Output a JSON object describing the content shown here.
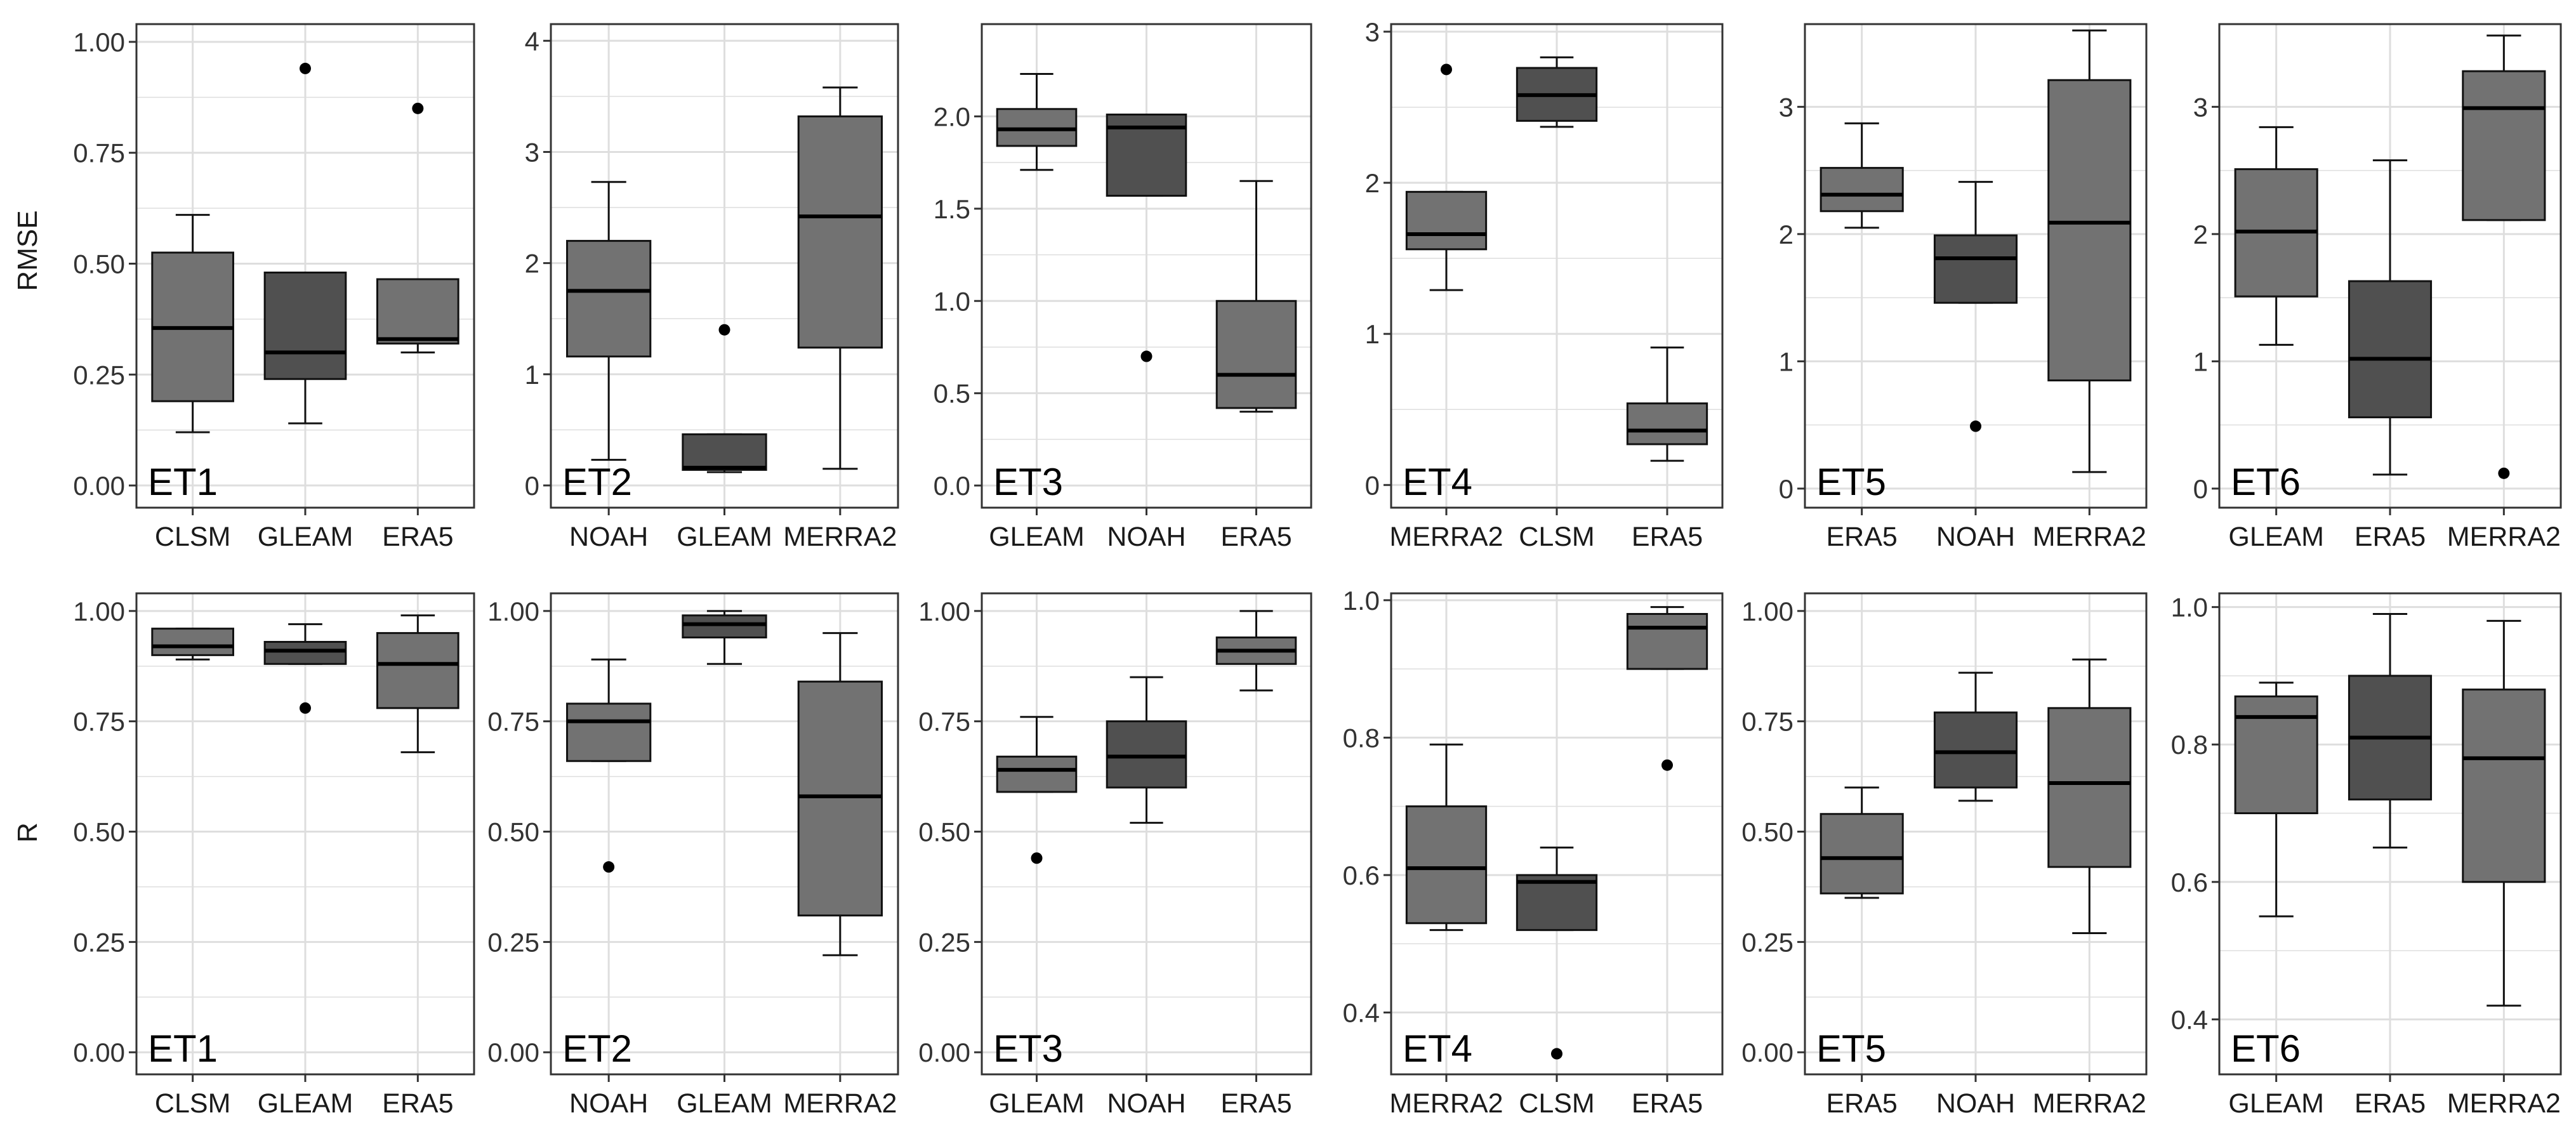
{
  "colors": {
    "box_light": "#727272",
    "box_dark": "#505050",
    "grid": "#dedede",
    "axis": "#333333",
    "text": "#1a1a1a"
  },
  "row_labels": [
    "RMSE",
    "R"
  ],
  "chart_data": [
    {
      "type": "box",
      "metric": "RMSE",
      "label": "ET1",
      "categories": [
        "CLSM",
        "GLEAM",
        "ERA5"
      ],
      "ylim": [
        -0.05,
        1.04
      ],
      "ticks": [
        0,
        0.25,
        0.5,
        0.75,
        1
      ],
      "tick_labels": [
        "0.00",
        "0.25",
        "0.50",
        "0.75",
        "1.00"
      ],
      "boxes": [
        {
          "min": 0.12,
          "q1": 0.19,
          "median": 0.355,
          "q3": 0.525,
          "max": 0.61,
          "outliers": []
        },
        {
          "min": 0.14,
          "q1": 0.24,
          "median": 0.3,
          "q3": 0.48,
          "max": 0.48,
          "outliers": [
            0.94
          ]
        },
        {
          "min": 0.3,
          "q1": 0.32,
          "median": 0.33,
          "q3": 0.465,
          "max": 0.465,
          "outliers": [
            0.85
          ]
        }
      ]
    },
    {
      "type": "box",
      "metric": "RMSE",
      "label": "ET2",
      "categories": [
        "NOAH",
        "GLEAM",
        "MERRA2"
      ],
      "ylim": [
        -0.2,
        4.15
      ],
      "ticks": [
        0,
        1,
        2,
        3,
        4
      ],
      "tick_labels": [
        "0",
        "1",
        "2",
        "3",
        "4"
      ],
      "boxes": [
        {
          "min": 0.23,
          "q1": 1.16,
          "median": 1.75,
          "q3": 2.2,
          "max": 2.73,
          "outliers": []
        },
        {
          "min": 0.12,
          "q1": 0.14,
          "median": 0.16,
          "q3": 0.46,
          "max": 0.46,
          "outliers": [
            1.4
          ]
        },
        {
          "min": 0.15,
          "q1": 1.24,
          "median": 2.42,
          "q3": 3.32,
          "max": 3.58,
          "outliers": []
        }
      ]
    },
    {
      "type": "box",
      "metric": "RMSE",
      "label": "ET3",
      "categories": [
        "GLEAM",
        "NOAH",
        "ERA5"
      ],
      "ylim": [
        -0.12,
        2.5
      ],
      "ticks": [
        0,
        0.5,
        1,
        1.5,
        2
      ],
      "tick_labels": [
        "0.0",
        "0.5",
        "1.0",
        "1.5",
        "2.0"
      ],
      "boxes": [
        {
          "min": 1.71,
          "q1": 1.84,
          "median": 1.93,
          "q3": 2.04,
          "max": 2.23,
          "outliers": []
        },
        {
          "min": 1.57,
          "q1": 1.57,
          "median": 1.94,
          "q3": 2.01,
          "max": 2.01,
          "outliers": [
            0.7
          ]
        },
        {
          "min": 0.4,
          "q1": 0.42,
          "median": 0.6,
          "q3": 1.0,
          "max": 1.65,
          "outliers": []
        }
      ]
    },
    {
      "type": "box",
      "metric": "RMSE",
      "label": "ET4",
      "categories": [
        "MERRA2",
        "CLSM",
        "ERA5"
      ],
      "ylim": [
        -0.15,
        3.05
      ],
      "ticks": [
        0,
        1,
        2,
        3
      ],
      "tick_labels": [
        "0",
        "1",
        "2",
        "3"
      ],
      "boxes": [
        {
          "min": 1.29,
          "q1": 1.56,
          "median": 1.66,
          "q3": 1.94,
          "max": 1.94,
          "outliers": [
            2.75
          ]
        },
        {
          "min": 2.37,
          "q1": 2.41,
          "median": 2.58,
          "q3": 2.76,
          "max": 2.83,
          "outliers": []
        },
        {
          "min": 0.16,
          "q1": 0.27,
          "median": 0.36,
          "q3": 0.54,
          "max": 0.91,
          "outliers": []
        }
      ]
    },
    {
      "type": "box",
      "metric": "RMSE",
      "label": "ET5",
      "categories": [
        "ERA5",
        "NOAH",
        "MERRA2"
      ],
      "ylim": [
        -0.15,
        3.65
      ],
      "ticks": [
        0,
        1,
        2,
        3
      ],
      "tick_labels": [
        "0",
        "1",
        "2",
        "3"
      ],
      "boxes": [
        {
          "min": 2.05,
          "q1": 2.18,
          "median": 2.31,
          "q3": 2.52,
          "max": 2.87,
          "outliers": []
        },
        {
          "min": 1.46,
          "q1": 1.46,
          "median": 1.81,
          "q3": 1.99,
          "max": 2.41,
          "outliers": [
            0.49
          ]
        },
        {
          "min": 0.13,
          "q1": 0.85,
          "median": 2.09,
          "q3": 3.21,
          "max": 3.6,
          "outliers": []
        }
      ]
    },
    {
      "type": "box",
      "metric": "RMSE",
      "label": "ET6",
      "categories": [
        "GLEAM",
        "ERA5",
        "MERRA2"
      ],
      "ylim": [
        -0.15,
        3.65
      ],
      "ticks": [
        0,
        1,
        2,
        3
      ],
      "tick_labels": [
        "0",
        "1",
        "2",
        "3"
      ],
      "boxes": [
        {
          "min": 1.13,
          "q1": 1.51,
          "median": 2.02,
          "q3": 2.51,
          "max": 2.84,
          "outliers": []
        },
        {
          "min": 0.11,
          "q1": 0.56,
          "median": 1.02,
          "q3": 1.63,
          "max": 2.58,
          "outliers": []
        },
        {
          "min": 2.11,
          "q1": 2.11,
          "median": 2.99,
          "q3": 3.28,
          "max": 3.56,
          "outliers": [
            0.12
          ]
        }
      ]
    },
    {
      "type": "box",
      "metric": "R",
      "label": "ET1",
      "categories": [
        "CLSM",
        "GLEAM",
        "ERA5"
      ],
      "ylim": [
        -0.05,
        1.04
      ],
      "ticks": [
        0,
        0.25,
        0.5,
        0.75,
        1
      ],
      "tick_labels": [
        "0.00",
        "0.25",
        "0.50",
        "0.75",
        "1.00"
      ],
      "boxes": [
        {
          "min": 0.89,
          "q1": 0.9,
          "median": 0.92,
          "q3": 0.96,
          "max": 0.96,
          "outliers": []
        },
        {
          "min": 0.88,
          "q1": 0.88,
          "median": 0.91,
          "q3": 0.93,
          "max": 0.97,
          "outliers": [
            0.78
          ]
        },
        {
          "min": 0.68,
          "q1": 0.78,
          "median": 0.88,
          "q3": 0.95,
          "max": 0.99,
          "outliers": []
        }
      ]
    },
    {
      "type": "box",
      "metric": "R",
      "label": "ET2",
      "categories": [
        "NOAH",
        "GLEAM",
        "MERRA2"
      ],
      "ylim": [
        -0.05,
        1.04
      ],
      "ticks": [
        0,
        0.25,
        0.5,
        0.75,
        1
      ],
      "tick_labels": [
        "0.00",
        "0.25",
        "0.50",
        "0.75",
        "1.00"
      ],
      "boxes": [
        {
          "min": 0.66,
          "q1": 0.66,
          "median": 0.75,
          "q3": 0.79,
          "max": 0.89,
          "outliers": [
            0.42
          ]
        },
        {
          "min": 0.88,
          "q1": 0.94,
          "median": 0.97,
          "q3": 0.99,
          "max": 1.0,
          "outliers": []
        },
        {
          "min": 0.22,
          "q1": 0.31,
          "median": 0.58,
          "q3": 0.84,
          "max": 0.95,
          "outliers": []
        }
      ]
    },
    {
      "type": "box",
      "metric": "R",
      "label": "ET3",
      "categories": [
        "GLEAM",
        "NOAH",
        "ERA5"
      ],
      "ylim": [
        -0.05,
        1.04
      ],
      "ticks": [
        0,
        0.25,
        0.5,
        0.75,
        1
      ],
      "tick_labels": [
        "0.00",
        "0.25",
        "0.50",
        "0.75",
        "1.00"
      ],
      "boxes": [
        {
          "min": 0.59,
          "q1": 0.59,
          "median": 0.64,
          "q3": 0.67,
          "max": 0.76,
          "outliers": [
            0.44
          ]
        },
        {
          "min": 0.52,
          "q1": 0.6,
          "median": 0.67,
          "q3": 0.75,
          "max": 0.85,
          "outliers": []
        },
        {
          "min": 0.82,
          "q1": 0.88,
          "median": 0.91,
          "q3": 0.94,
          "max": 1.0,
          "outliers": []
        }
      ]
    },
    {
      "type": "box",
      "metric": "R",
      "label": "ET4",
      "categories": [
        "MERRA2",
        "CLSM",
        "ERA5"
      ],
      "ylim": [
        0.31,
        1.01
      ],
      "ticks": [
        0.4,
        0.6,
        0.8,
        1.0
      ],
      "tick_labels": [
        "0.4",
        "0.6",
        "0.8",
        "1.0"
      ],
      "boxes": [
        {
          "min": 0.52,
          "q1": 0.53,
          "median": 0.61,
          "q3": 0.7,
          "max": 0.79,
          "outliers": []
        },
        {
          "min": 0.52,
          "q1": 0.52,
          "median": 0.59,
          "q3": 0.6,
          "max": 0.64,
          "outliers": [
            0.34
          ]
        },
        {
          "min": 0.9,
          "q1": 0.9,
          "median": 0.96,
          "q3": 0.98,
          "max": 0.99,
          "outliers": [
            0.76
          ]
        }
      ]
    },
    {
      "type": "box",
      "metric": "R",
      "label": "ET5",
      "categories": [
        "ERA5",
        "NOAH",
        "MERRA2"
      ],
      "ylim": [
        -0.05,
        1.04
      ],
      "ticks": [
        0,
        0.25,
        0.5,
        0.75,
        1
      ],
      "tick_labels": [
        "0.00",
        "0.25",
        "0.50",
        "0.75",
        "1.00"
      ],
      "boxes": [
        {
          "min": 0.35,
          "q1": 0.36,
          "median": 0.44,
          "q3": 0.54,
          "max": 0.6,
          "outliers": []
        },
        {
          "min": 0.57,
          "q1": 0.6,
          "median": 0.68,
          "q3": 0.77,
          "max": 0.86,
          "outliers": []
        },
        {
          "min": 0.27,
          "q1": 0.42,
          "median": 0.61,
          "q3": 0.78,
          "max": 0.89,
          "outliers": []
        }
      ]
    },
    {
      "type": "box",
      "metric": "R",
      "label": "ET6",
      "categories": [
        "GLEAM",
        "ERA5",
        "MERRA2"
      ],
      "ylim": [
        0.32,
        1.02
      ],
      "ticks": [
        0.4,
        0.6,
        0.8,
        1.0
      ],
      "tick_labels": [
        "0.4",
        "0.6",
        "0.8",
        "1.0"
      ],
      "boxes": [
        {
          "min": 0.55,
          "q1": 0.7,
          "median": 0.84,
          "q3": 0.87,
          "max": 0.89,
          "outliers": []
        },
        {
          "min": 0.65,
          "q1": 0.72,
          "median": 0.81,
          "q3": 0.9,
          "max": 0.99,
          "outliers": []
        },
        {
          "min": 0.42,
          "q1": 0.6,
          "median": 0.78,
          "q3": 0.88,
          "max": 0.98,
          "outliers": []
        }
      ]
    }
  ]
}
